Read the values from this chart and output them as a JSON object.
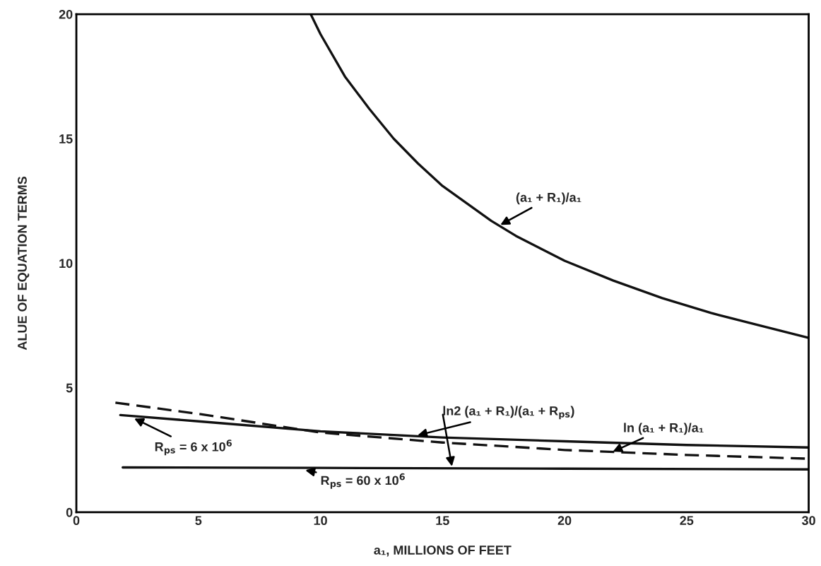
{
  "chart_data": {
    "type": "line",
    "xlabel": "a₁, MILLIONS OF FEET",
    "ylabel": "ALUE OF EQUATION TERMS",
    "xlim": [
      0,
      30
    ],
    "ylim": [
      0,
      20
    ],
    "xticks": [
      0,
      5,
      10,
      15,
      20,
      25,
      30
    ],
    "yticks": [
      0,
      5,
      10,
      15,
      20
    ],
    "grid": false,
    "legend": false,
    "marker": "none",
    "series": [
      {
        "color": "#111111",
        "line_style": "solid",
        "x": [
          9.6,
          10,
          11,
          12,
          13,
          14,
          15,
          16,
          17,
          18,
          20,
          22,
          24,
          26,
          28,
          30
        ],
        "values": [
          20,
          19.2,
          17.5,
          16.2,
          15.0,
          14.0,
          13.1,
          12.4,
          11.7,
          11.1,
          10.1,
          9.3,
          8.6,
          8.0,
          7.5,
          7.0
        ]
      },
      {
        "color": "#111111",
        "line_style": "solid",
        "x": [
          1.8,
          5,
          10,
          15,
          20,
          25,
          30
        ],
        "values": [
          3.9,
          3.65,
          3.25,
          3.0,
          2.85,
          2.7,
          2.6
        ]
      },
      {
        "color": "#111111",
        "line_style": "dashed",
        "x": [
          1.6,
          5,
          10,
          15,
          20,
          25,
          30
        ],
        "values": [
          4.4,
          3.95,
          3.2,
          2.8,
          2.5,
          2.3,
          2.15
        ]
      },
      {
        "color": "#111111",
        "line_style": "solid",
        "x": [
          1.9,
          10,
          20,
          30
        ],
        "values": [
          1.8,
          1.78,
          1.75,
          1.72
        ]
      }
    ],
    "annotations": [
      {
        "text": "(a₁ + R₁)/a₁",
        "x": 17.3,
        "y": 11.5
      },
      {
        "text": "ln2 (a₁ + R₁)/(a₁ + R$_{ps}$)",
        "x": 13.9,
        "y": 3.07
      },
      {
        "text": "ln (a₁ + R₁)/a₁",
        "x": 21.9,
        "y": 2.4
      },
      {
        "text": "R$_{ps}$ = 6 x 10$^{6}$",
        "x": 2.3,
        "y": 3.8
      },
      {
        "text": "R$_{ps}$ = 60 x 10$^{6}$",
        "x": 9.3,
        "y": 1.7
      }
    ]
  }
}
